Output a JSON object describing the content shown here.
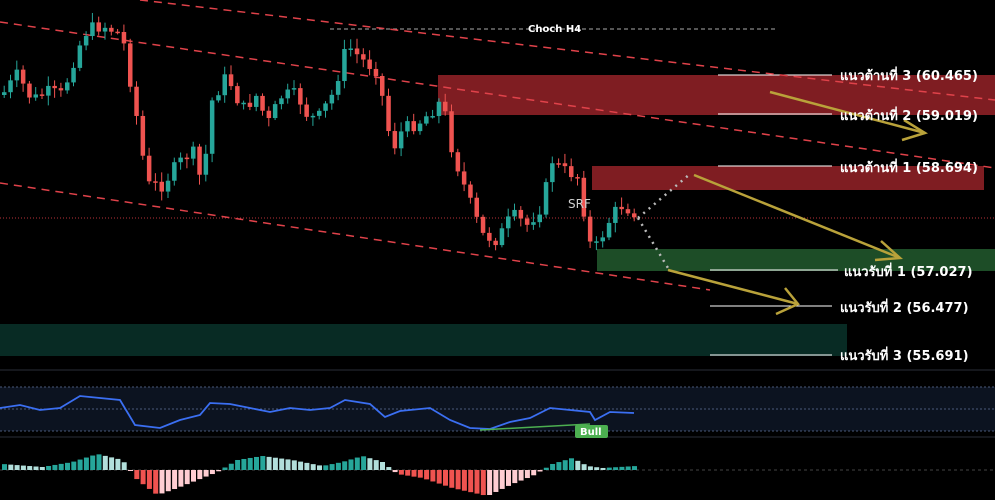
{
  "chart_data": {
    "type": "candlestick",
    "annotations": {
      "choch": "Choch H4",
      "srf": "SRF",
      "bull": "Bull"
    },
    "levels": [
      {
        "id": "r3",
        "label": "แนวต้านที่ 3 (60.465)",
        "value": 60.465,
        "kind": "resistance"
      },
      {
        "id": "r2",
        "label": "แนวต้านที่ 2 (59.019)",
        "value": 59.019,
        "kind": "resistance"
      },
      {
        "id": "r1",
        "label": "แนวต้านที่ 1 (58.694)",
        "value": 58.694,
        "kind": "resistance"
      },
      {
        "id": "s1",
        "label": "แนวรับที่ 1 (57.027)",
        "value": 57.027,
        "kind": "support"
      },
      {
        "id": "s2",
        "label": "แนวรับที่ 2 (56.477)",
        "value": 56.477,
        "kind": "support"
      },
      {
        "id": "s3",
        "label": "แนวรับที่ 3 (55.691)",
        "value": 55.691,
        "kind": "support"
      }
    ],
    "colors": {
      "background": "#000000",
      "bull_candle": "#26a69a",
      "bear_candle": "#ef5350",
      "resistance_zone": "#8b1e24",
      "support_zone": "#1e5a2a",
      "demand_zone": "#0b3a2e",
      "trendline": "#e0424a",
      "forecast_arrow": "#b9a23a",
      "rsi_line": "#3b6ff2",
      "divergence_line": "#4caf50",
      "hist_up": "#26a69a",
      "hist_down": "#ef5350"
    }
  }
}
